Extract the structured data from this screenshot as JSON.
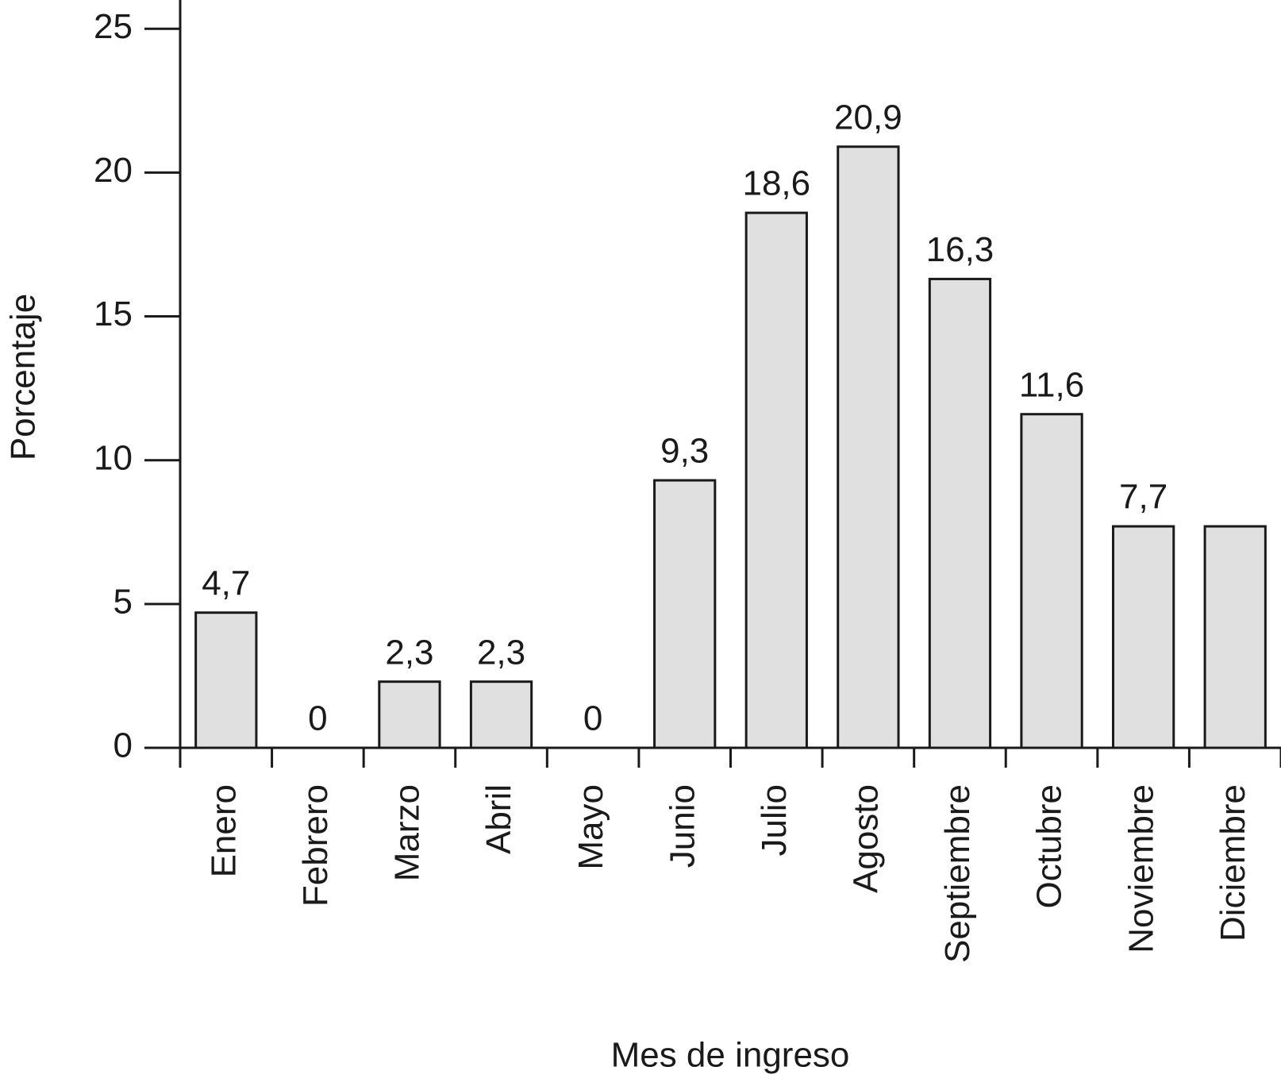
{
  "chart_data": {
    "type": "bar",
    "x_label": "Mes de ingreso",
    "y_label": "Porcentaje",
    "categories": [
      "Enero",
      "Febrero",
      "Marzo",
      "Abril",
      "Mayo",
      "Junio",
      "Julio",
      "Agosto",
      "Septiembre",
      "Octubre",
      "Noviembre",
      "Diciembre"
    ],
    "values": [
      4.7,
      0,
      2.3,
      2.3,
      0,
      9.3,
      18.6,
      20.9,
      16.3,
      11.6,
      7.7,
      7.7
    ],
    "value_labels": [
      "4,7",
      "0",
      "2,3",
      "2,3",
      "0",
      "9,3",
      "18,6",
      "20,9",
      "16,3",
      "11,6",
      "7,7",
      null
    ],
    "color": "#e0e0e0",
    "ylim": [
      0,
      26
    ],
    "yticks": [
      0,
      5,
      10,
      15,
      20,
      25
    ],
    "grid": false
  }
}
